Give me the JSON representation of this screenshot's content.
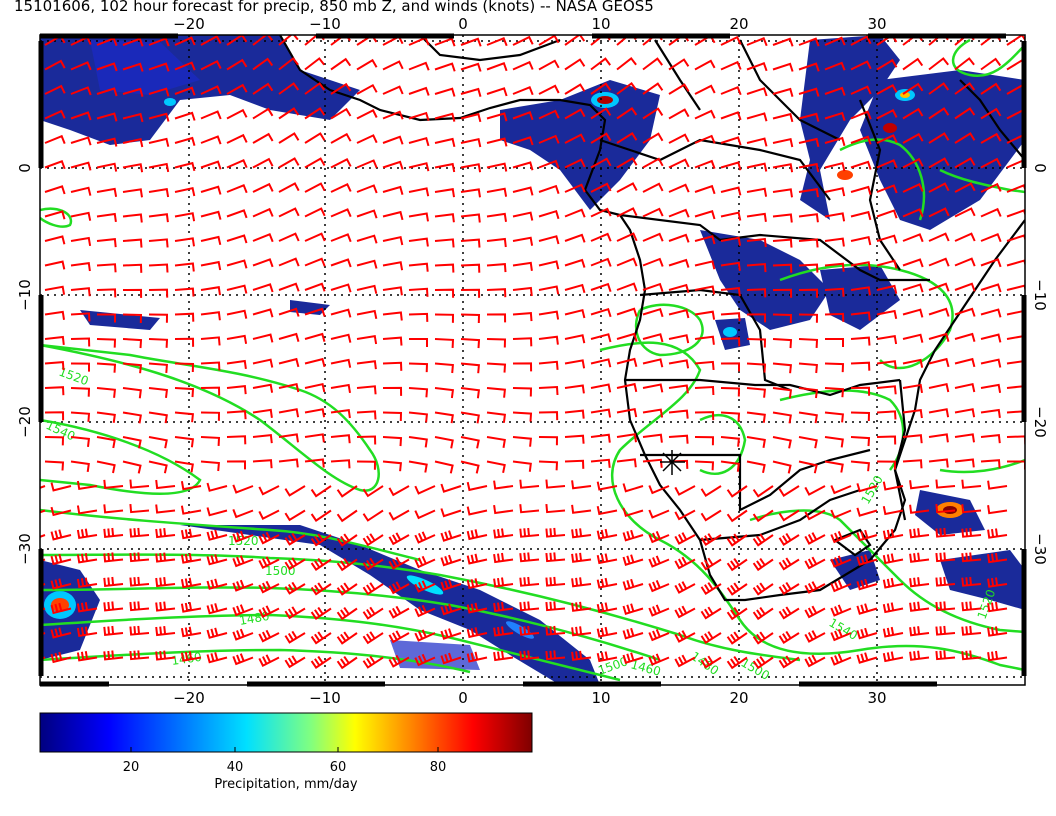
{
  "title": "15101606, 102 hour forecast for precip, 850 mb Z, and winds (knots) -- NASA GEOS5",
  "map": {
    "lon_ticks": [
      "−20",
      "−10",
      "0",
      "10",
      "20",
      "30"
    ],
    "lat_ticks_left": [
      "0",
      "−10",
      "−20",
      "−30"
    ],
    "lat_ticks_right": [
      "0",
      "−10",
      "−20",
      "−30"
    ],
    "contour_labels": [
      "1520",
      "1540",
      "1520",
      "1500",
      "1480",
      "1460",
      "1500",
      "1480",
      "1460",
      "1500",
      "1520",
      "1540",
      "1520"
    ],
    "colors": {
      "wind_barbs": "#ff0000",
      "contours": "#22dd22",
      "coastline": "#000000",
      "precip_low": "#1a237e"
    }
  },
  "colorbar": {
    "ticks": [
      "20",
      "40",
      "60",
      "80"
    ],
    "label": "Precipitation, mm/day"
  }
}
